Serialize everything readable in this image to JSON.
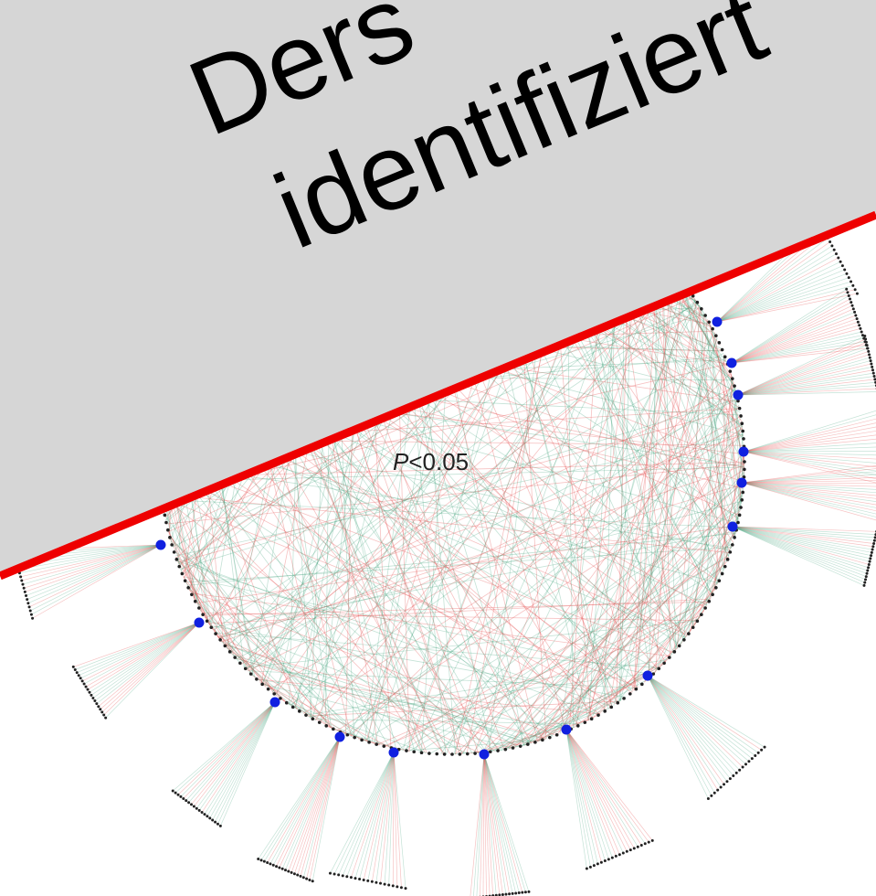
{
  "banner": {
    "line1": "Ders",
    "line2": "identifiziert"
  },
  "network": {
    "label": {
      "symbol": "P",
      "condition": "<0.05"
    }
  }
}
